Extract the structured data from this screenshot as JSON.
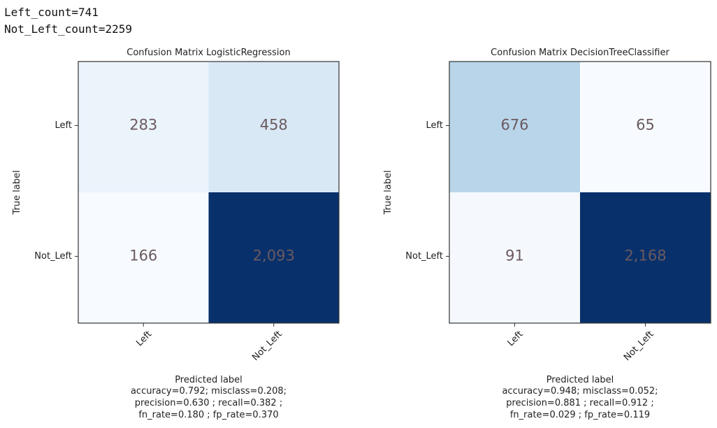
{
  "output_lines": [
    "Left_count=741",
    "Not_Left_count=2259"
  ],
  "chart_data": [
    {
      "type": "heatmap",
      "title": "Confusion Matrix LogisticRegression",
      "ylabel": "True label",
      "xlabel": "Predicted label",
      "row_labels": [
        "Left",
        "Not_Left"
      ],
      "col_labels": [
        "Left",
        "Not_Left"
      ],
      "values": [
        [
          283,
          458
        ],
        [
          166,
          2093
        ]
      ],
      "cell_labels": [
        [
          "283",
          "458"
        ],
        [
          "166",
          "2,093"
        ]
      ],
      "colormap": "Blues",
      "stats": [
        "accuracy=0.792; misclass=0.208;",
        "precision=0.630 ; recall=0.382 ;",
        "fn_rate=0.180 ; fp_rate=0.370"
      ]
    },
    {
      "type": "heatmap",
      "title": "Confusion Matrix DecisionTreeClassifier",
      "ylabel": "True label",
      "xlabel": "Predicted label",
      "row_labels": [
        "Left",
        "Not_Left"
      ],
      "col_labels": [
        "Left",
        "Not_Left"
      ],
      "values": [
        [
          676,
          65
        ],
        [
          91,
          2168
        ]
      ],
      "cell_labels": [
        [
          "676",
          "65"
        ],
        [
          "91",
          "2,168"
        ]
      ],
      "colormap": "Blues",
      "stats": [
        "accuracy=0.948; misclass=0.052;",
        "precision=0.881 ; recall=0.912 ;",
        "fn_rate=0.029 ; fp_rate=0.119"
      ]
    }
  ]
}
